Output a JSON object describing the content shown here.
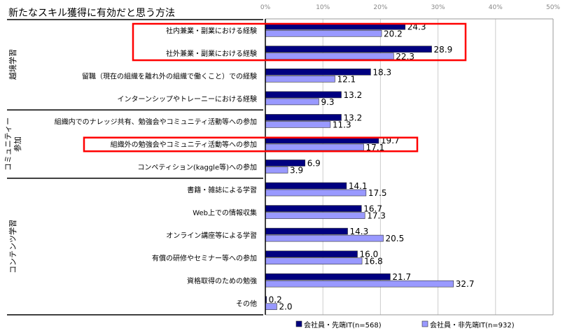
{
  "chart_data": {
    "type": "bar",
    "orientation": "horizontal",
    "title": "新たなスキル獲得に有効だと思う方法",
    "xlim": [
      0,
      50
    ],
    "x_ticks": [
      "0%",
      "10%",
      "20%",
      "30%",
      "40%",
      "50%"
    ],
    "grid": true,
    "legend_position": "bottom",
    "groups": [
      {
        "label": "越境学習",
        "rows": [
          0,
          1,
          2,
          3
        ]
      },
      {
        "label": "コミュニティー参加",
        "rows": [
          4,
          5,
          6
        ]
      },
      {
        "label": "コンテンツ学習",
        "rows": [
          7,
          8,
          9,
          10,
          11,
          12
        ]
      }
    ],
    "categories": [
      "社内兼業・副業における経験",
      "社外兼業・副業における経験",
      "留職（現在の組織を離れ外の組織で働くこと）での経験",
      "インターンシップやトレーニーにおける経験",
      "組織内でのナレッジ共有、勉強会やコミュニティ活動等への参加",
      "組織外の勉強会やコミュニティ活動等への参加",
      "コンペティション(kaggle等)への参加",
      "書籍・雑誌による学習",
      "Web上での情報収集",
      "オンライン講座等による学習",
      "有償の研修やセミナー等への参加",
      "資格取得のための勉強",
      "その他"
    ],
    "series": [
      {
        "name": "会社員・先端IT(n=568)",
        "color": "#000080",
        "values": [
          24.3,
          28.9,
          18.3,
          13.2,
          13.2,
          19.7,
          6.9,
          14.1,
          16.7,
          14.3,
          16.0,
          21.7,
          0.2
        ]
      },
      {
        "name": "会社員・非先端IT(n=932)",
        "color": "#9999ff",
        "values": [
          20.2,
          22.3,
          12.1,
          9.3,
          11.3,
          17.1,
          3.9,
          17.5,
          17.3,
          20.5,
          16.8,
          32.7,
          2.0
        ]
      }
    ],
    "highlighted_rows": [
      [
        0,
        1
      ],
      [
        5
      ]
    ],
    "highlight_color": "#ff0000"
  }
}
